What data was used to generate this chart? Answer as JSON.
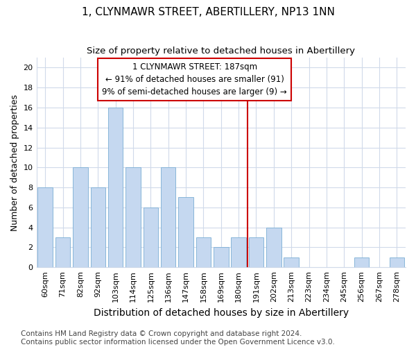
{
  "title": "1, CLYNMAWR STREET, ABERTILLERY, NP13 1NN",
  "subtitle": "Size of property relative to detached houses in Abertillery",
  "xlabel": "Distribution of detached houses by size in Abertillery",
  "ylabel": "Number of detached properties",
  "bar_labels": [
    "60sqm",
    "71sqm",
    "82sqm",
    "92sqm",
    "103sqm",
    "114sqm",
    "125sqm",
    "136sqm",
    "147sqm",
    "158sqm",
    "169sqm",
    "180sqm",
    "191sqm",
    "202sqm",
    "213sqm",
    "223sqm",
    "234sqm",
    "245sqm",
    "256sqm",
    "267sqm",
    "278sqm"
  ],
  "bar_values": [
    8,
    3,
    10,
    8,
    16,
    10,
    6,
    10,
    7,
    3,
    2,
    3,
    3,
    4,
    1,
    0,
    0,
    0,
    1,
    0,
    1
  ],
  "bar_color": "#c5d8f0",
  "bar_edge_color": "#7aadd4",
  "ylim": [
    0,
    21
  ],
  "yticks": [
    0,
    2,
    4,
    6,
    8,
    10,
    12,
    14,
    16,
    18,
    20
  ],
  "vline_index": 12,
  "vline_color": "#cc0000",
  "annotation_text": "1 CLYNMAWR STREET: 187sqm\n← 91% of detached houses are smaller (91)\n9% of semi-detached houses are larger (9) →",
  "annotation_box_color": "#ffffff",
  "annotation_box_edgecolor": "#cc0000",
  "footer_text": "Contains HM Land Registry data © Crown copyright and database right 2024.\nContains public sector information licensed under the Open Government Licence v3.0.",
  "background_color": "#ffffff",
  "plot_bg_color": "#ffffff",
  "grid_color": "#d0daea",
  "title_fontsize": 11,
  "subtitle_fontsize": 9.5,
  "ylabel_fontsize": 9,
  "xlabel_fontsize": 10,
  "tick_fontsize": 8,
  "annotation_fontsize": 8.5,
  "footer_fontsize": 7.5
}
